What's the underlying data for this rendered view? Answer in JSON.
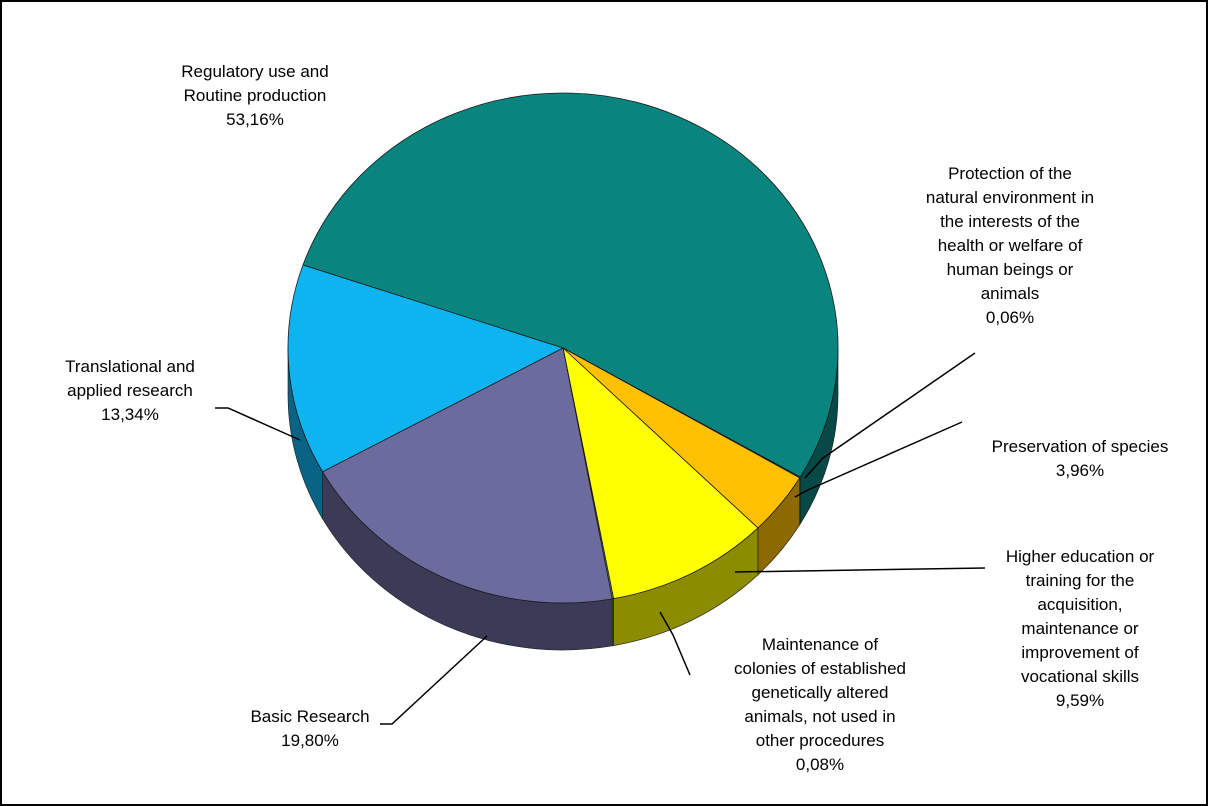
{
  "chart_data": {
    "type": "pie",
    "title": "",
    "style": "3d",
    "legend": "none",
    "slices": [
      {
        "label": "Regulatory use and Routine production",
        "value": 53.16,
        "value_label": "53,16%",
        "color": "#0a847f"
      },
      {
        "label": "Protection of the natural environment in the interests of the health or welfare of human beings or animals",
        "value": 0.06,
        "value_label": "0,06%",
        "color": "#2e86c1"
      },
      {
        "label": "Preservation of species",
        "value": 3.96,
        "value_label": "3,96%",
        "color": "#ffc000"
      },
      {
        "label": "Higher education or training for the acquisition, maintenance or improvement of vocational skills",
        "value": 9.59,
        "value_label": "9,59%",
        "color": "#ffff00"
      },
      {
        "label": "Maintenance of colonies of established genetically altered animals, not used in other procedures",
        "value": 0.08,
        "value_label": "0,08%",
        "color": "#7fb24a"
      },
      {
        "label": "Basic Research",
        "value": 19.8,
        "value_label": "19,80%",
        "color": "#6b6b9e"
      },
      {
        "label": "Translational and applied research",
        "value": 13.34,
        "value_label": "13,34%",
        "color": "#0eb4f0"
      }
    ]
  },
  "labels": {
    "regulatory": {
      "lines": [
        "Regulatory use and",
        "Routine production"
      ],
      "pct": "53,16%"
    },
    "protection": {
      "lines": [
        "Protection of the",
        "natural environment in",
        "the interests of the",
        "health or welfare of",
        "human beings or",
        "animals"
      ],
      "pct": "0,06%"
    },
    "preservation": {
      "lines": [
        "Preservation of species"
      ],
      "pct": "3,96%"
    },
    "education": {
      "lines": [
        "Higher education or",
        "training for the",
        "acquisition,",
        "maintenance or",
        "improvement of",
        "vocational skills"
      ],
      "pct": "9,59%"
    },
    "maintenance": {
      "lines": [
        "Maintenance of",
        "colonies of established",
        "genetically altered",
        "animals, not used in",
        "other procedures"
      ],
      "pct": "0,08%"
    },
    "basic": {
      "lines": [
        "Basic Research"
      ],
      "pct": "19,80%"
    },
    "translational": {
      "lines": [
        "Translational and",
        "applied research"
      ],
      "pct": "13,34%"
    }
  }
}
